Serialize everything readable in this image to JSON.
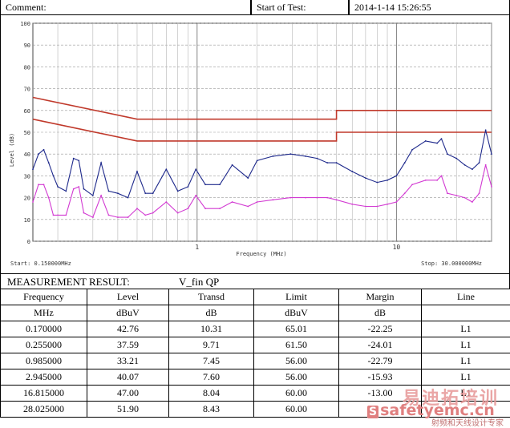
{
  "header": {
    "comment_label": "Comment:",
    "start_label": "Start of Test:",
    "start_value": "2014-1-14 15:26:55"
  },
  "chart_data": {
    "type": "line",
    "ylabel": "Level (dB)",
    "xlabel": "Frequency (MHz)",
    "xscale": "log",
    "xlim": [
      0.15,
      30
    ],
    "ylim": [
      0,
      100
    ],
    "yticks": [
      0,
      10,
      20,
      30,
      40,
      50,
      60,
      70,
      80,
      90,
      100
    ],
    "xtick_labels": [
      "1",
      "10"
    ],
    "start_text": "Start: 0.150000MHz",
    "stop_text": "Stop: 30.000000MHz",
    "grid": true,
    "series": [
      {
        "color": "#c0392b",
        "x": [
          0.15,
          0.5,
          0.5,
          5,
          5,
          30
        ],
        "values": [
          66,
          56,
          56,
          56,
          60,
          60
        ]
      },
      {
        "color": "#c0392b",
        "x": [
          0.15,
          0.5,
          0.5,
          5,
          5,
          30
        ],
        "values": [
          56,
          46,
          46,
          46,
          50,
          50
        ]
      },
      {
        "color": "#1f2a8c",
        "x": [
          0.15,
          0.16,
          0.17,
          0.18,
          0.19,
          0.2,
          0.22,
          0.24,
          0.255,
          0.27,
          0.3,
          0.33,
          0.36,
          0.4,
          0.45,
          0.5,
          0.55,
          0.6,
          0.7,
          0.8,
          0.9,
          0.985,
          1.1,
          1.3,
          1.5,
          1.8,
          2.0,
          2.4,
          2.945,
          3.5,
          4.0,
          4.5,
          5.0,
          6.0,
          7.0,
          8.0,
          9.0,
          10,
          11,
          12,
          14,
          16,
          16.815,
          18,
          20,
          22,
          24,
          26,
          28.025,
          30
        ],
        "values": [
          33,
          40,
          42,
          36,
          30,
          25,
          23,
          38,
          37,
          24,
          21,
          36,
          23,
          22,
          20,
          32,
          22,
          22,
          33,
          23,
          25,
          33,
          26,
          26,
          35,
          29,
          37,
          39,
          40,
          39,
          38,
          36,
          36,
          32,
          29,
          27,
          28,
          30,
          36,
          42,
          46,
          45,
          47,
          40,
          38,
          35,
          33,
          36,
          51,
          40
        ]
      },
      {
        "color": "#d23ad2",
        "x": [
          0.15,
          0.16,
          0.17,
          0.18,
          0.19,
          0.2,
          0.22,
          0.24,
          0.255,
          0.27,
          0.3,
          0.33,
          0.36,
          0.4,
          0.45,
          0.5,
          0.55,
          0.6,
          0.7,
          0.8,
          0.9,
          0.985,
          1.1,
          1.3,
          1.5,
          1.8,
          2.0,
          2.4,
          2.945,
          3.5,
          4.0,
          4.5,
          5.0,
          6.0,
          7.0,
          8.0,
          9.0,
          10,
          11,
          12,
          14,
          16,
          16.815,
          18,
          20,
          22,
          24,
          26,
          28.025,
          30
        ],
        "values": [
          18,
          26,
          26,
          20,
          12,
          12,
          12,
          24,
          25,
          13,
          11,
          21,
          12,
          11,
          11,
          15,
          12,
          13,
          18,
          13,
          15,
          21,
          15,
          15,
          18,
          16,
          18,
          19,
          20,
          20,
          20,
          20,
          19,
          17,
          16,
          16,
          17,
          18,
          22,
          26,
          28,
          28,
          30,
          22,
          21,
          20,
          18,
          22,
          35,
          25
        ]
      }
    ]
  },
  "measurement": {
    "title": "MEASUREMENT RESULT:",
    "subtitle": "V_fin QP"
  },
  "table": {
    "headers": [
      "Frequency",
      "Level",
      "Transd",
      "Limit",
      "Margin",
      "Line"
    ],
    "units": [
      "MHz",
      "dBuV",
      "dB",
      "dBuV",
      "dB",
      ""
    ],
    "rows": [
      [
        "0.170000",
        "42.76",
        "10.31",
        "65.01",
        "-22.25",
        "L1"
      ],
      [
        "0.255000",
        "37.59",
        "9.71",
        "61.50",
        "-24.01",
        "L1"
      ],
      [
        "0.985000",
        "33.21",
        "7.45",
        "56.00",
        "-22.79",
        "L1"
      ],
      [
        "2.945000",
        "40.07",
        "7.60",
        "56.00",
        "-15.93",
        "L1"
      ],
      [
        "16.815000",
        "47.00",
        "8.04",
        "60.00",
        "-13.00",
        "L1"
      ],
      [
        "28.025000",
        "51.90",
        "8.43",
        "60.00",
        "",
        ""
      ]
    ]
  },
  "watermark": {
    "cn_top": "易迪拓培训",
    "logo_mark": "S",
    "logo_text": "safetyemc.cn",
    "cn_bottom": "射频和天线设计专家"
  }
}
